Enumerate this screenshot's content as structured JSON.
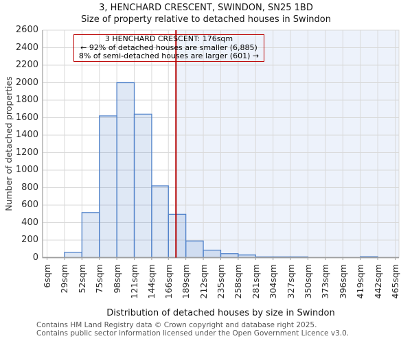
{
  "chart_data": {
    "type": "bar",
    "title": "3, HENCHARD CRESCENT, SWINDON, SN25 1BD",
    "subtitle": "Size of property relative to detached houses in Swindon",
    "xlabel": "Distribution of detached houses by size in Swindon",
    "ylabel": "Number of detached properties",
    "ylim": [
      0,
      2600
    ],
    "y_ticks": [
      0,
      200,
      400,
      600,
      800,
      1000,
      1200,
      1400,
      1600,
      1800,
      2000,
      2200,
      2400,
      2600
    ],
    "x_tick_labels": [
      "6sqm",
      "29sqm",
      "52sqm",
      "75sqm",
      "98sqm",
      "121sqm",
      "144sqm",
      "166sqm",
      "189sqm",
      "212sqm",
      "235sqm",
      "258sqm",
      "281sqm",
      "304sqm",
      "327sqm",
      "350sqm",
      "373sqm",
      "396sqm",
      "419sqm",
      "442sqm",
      "465sqm"
    ],
    "bin_edges": [
      6,
      29,
      52,
      75,
      98,
      121,
      144,
      166,
      189,
      212,
      235,
      258,
      281,
      304,
      327,
      350,
      373,
      396,
      419,
      442,
      465
    ],
    "values": [
      0,
      60,
      515,
      1620,
      2000,
      1640,
      820,
      495,
      190,
      85,
      45,
      30,
      8,
      8,
      8,
      0,
      0,
      0,
      10,
      0
    ],
    "grid": true,
    "legend": null,
    "marker": {
      "value": 176,
      "color": "#b40000"
    },
    "shade_right_of_marker": true,
    "colors": {
      "bar_fill": "rgba(79,129,199,0.18)",
      "bar_stroke": "#4f81c9",
      "shade": "#edf2fb",
      "grid": "#d9d9d9",
      "spine": "#9e9e9e",
      "marker_line": "#b40000"
    }
  },
  "annotation": {
    "line1": "3 HENCHARD CRESCENT: 176sqm",
    "line2": "← 92% of detached houses are smaller (6,885)",
    "line3": "8% of semi-detached houses are larger (601) →"
  },
  "footer": {
    "line1": "Contains HM Land Registry data © Crown copyright and database right 2025.",
    "line2": "Contains public sector information licensed under the Open Government Licence v3.0."
  }
}
